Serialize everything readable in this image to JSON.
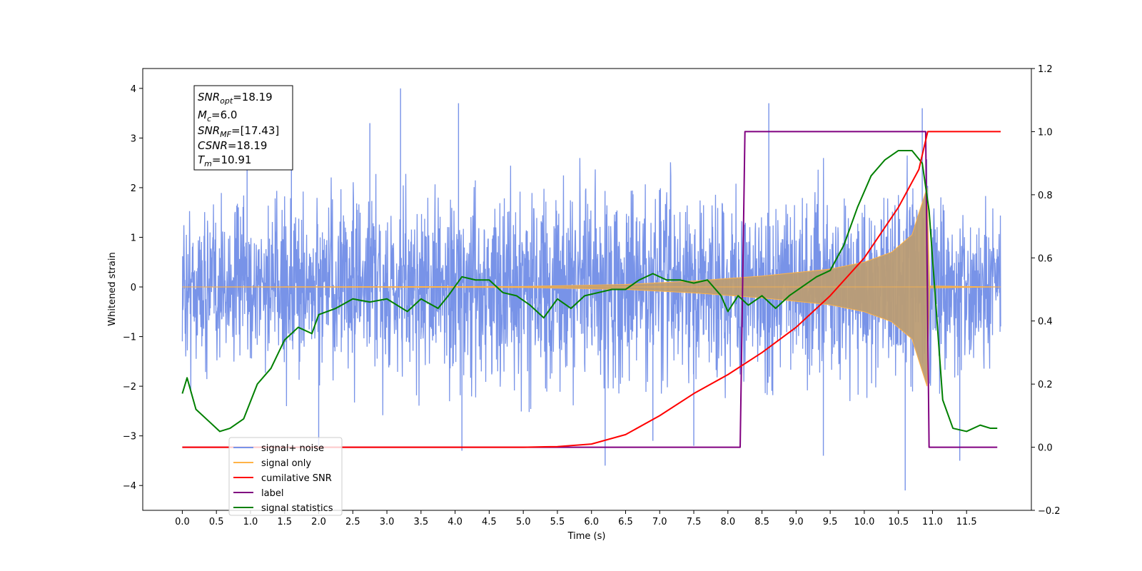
{
  "chart_data": {
    "type": "line",
    "xlabel": "Time (s)",
    "ylabel": "Whitened strain",
    "xlim": [
      -0.58,
      12.45
    ],
    "ylim": [
      -4.5,
      4.4
    ],
    "ylim_right": [
      -0.2,
      1.2
    ],
    "x_ticks": [
      "0.0",
      "0.5",
      "1.0",
      "1.5",
      "2.0",
      "2.5",
      "3.0",
      "3.5",
      "4.0",
      "4.5",
      "5.0",
      "5.5",
      "6.0",
      "6.5",
      "7.0",
      "7.5",
      "8.0",
      "8.5",
      "9.0",
      "9.5",
      "10.0",
      "10.5",
      "11.0",
      "11.5"
    ],
    "y_ticks_left": [
      "4",
      "3",
      "2",
      "1",
      "0",
      "−1",
      "−2",
      "−3",
      "−4"
    ],
    "y_ticks_right": [
      "1.2",
      "1.0",
      "0.8",
      "0.6",
      "0.4",
      "0.2",
      "0.0",
      "−0.2"
    ],
    "colors": {
      "signal_noise": "#7893e8",
      "signal_only": "#ffb347",
      "signal_fill": "#bb9c74",
      "cumulative_snr": "#ff0000",
      "label": "#800080",
      "signal_statistics": "#008000"
    },
    "info_box": {
      "lines": [
        {
          "main": "SNR",
          "sub": "opt",
          "value": "=18.19"
        },
        {
          "main": "M",
          "sub": "c",
          "value": "=6.0"
        },
        {
          "main": "SNR",
          "sub": "MF",
          "value": "=[17.43]"
        },
        {
          "main": "CSNR",
          "sub": "",
          "value": "=18.19"
        },
        {
          "main": "T",
          "sub": "m",
          "value": "=10.91"
        }
      ]
    },
    "legend": {
      "placement": "lower-left",
      "entries": [
        {
          "label": "signal+ noise",
          "color": "#7893e8"
        },
        {
          "label": "signal only",
          "color": "#ffb347"
        },
        {
          "label": "cumilative SNR",
          "color": "#ff0000"
        },
        {
          "label": "label",
          "color": "#800080"
        },
        {
          "label": "signal statistics",
          "color": "#008000"
        }
      ]
    },
    "series": [
      {
        "name": "signal+ noise",
        "axis": "left",
        "x_range": [
          0.0,
          12.0
        ],
        "envelope": [
          {
            "x": 0.0,
            "lo": -2.3,
            "hi": 2.2
          },
          {
            "x": 3.0,
            "lo": -2.6,
            "hi": 2.6
          },
          {
            "x": 6.0,
            "lo": -2.8,
            "hi": 2.8
          },
          {
            "x": 8.2,
            "lo": -2.4,
            "hi": 2.5
          },
          {
            "x": 10.5,
            "lo": -2.9,
            "hi": 2.8
          },
          {
            "x": 12.0,
            "lo": -2.3,
            "hi": 2.2
          }
        ],
        "spikes": [
          {
            "x": 0.95,
            "y": 3.2
          },
          {
            "x": 1.6,
            "y": 3.0
          },
          {
            "x": 2.75,
            "y": 3.3
          },
          {
            "x": 3.2,
            "y": 4.0
          },
          {
            "x": 4.05,
            "y": 3.7
          },
          {
            "x": 6.2,
            "y": -3.6
          },
          {
            "x": 8.6,
            "y": 3.7
          },
          {
            "x": 9.4,
            "y": -3.4
          },
          {
            "x": 10.6,
            "y": -4.1
          },
          {
            "x": 10.85,
            "y": 3.6
          },
          {
            "x": 11.4,
            "y": -3.5
          },
          {
            "x": 4.1,
            "y": -3.3
          },
          {
            "x": 6.9,
            "y": -3.1
          },
          {
            "x": 7.5,
            "y": -3.2
          },
          {
            "x": 2.0,
            "y": -3.2
          }
        ]
      },
      {
        "name": "signal only",
        "axis": "left",
        "envelope": [
          {
            "x": 0.0,
            "a": 0.0
          },
          {
            "x": 5.0,
            "a": 0.01
          },
          {
            "x": 6.5,
            "a": 0.05
          },
          {
            "x": 7.5,
            "a": 0.12
          },
          {
            "x": 8.5,
            "a": 0.22
          },
          {
            "x": 9.5,
            "a": 0.36
          },
          {
            "x": 10.0,
            "a": 0.5
          },
          {
            "x": 10.4,
            "a": 0.7
          },
          {
            "x": 10.7,
            "a": 1.05
          },
          {
            "x": 10.85,
            "a": 1.7
          },
          {
            "x": 10.92,
            "a": 2.0
          },
          {
            "x": 10.96,
            "a": 0.02
          },
          {
            "x": 12.0,
            "a": 0.0
          }
        ]
      },
      {
        "name": "cumilative SNR",
        "axis": "right",
        "points": [
          {
            "x": 0.0,
            "y": 0.0
          },
          {
            "x": 5.0,
            "y": 0.0
          },
          {
            "x": 5.5,
            "y": 0.002
          },
          {
            "x": 6.0,
            "y": 0.01
          },
          {
            "x": 6.5,
            "y": 0.04
          },
          {
            "x": 7.0,
            "y": 0.1
          },
          {
            "x": 7.5,
            "y": 0.17
          },
          {
            "x": 8.0,
            "y": 0.23
          },
          {
            "x": 8.5,
            "y": 0.3
          },
          {
            "x": 9.0,
            "y": 0.38
          },
          {
            "x": 9.5,
            "y": 0.48
          },
          {
            "x": 10.0,
            "y": 0.6
          },
          {
            "x": 10.5,
            "y": 0.76
          },
          {
            "x": 10.8,
            "y": 0.88
          },
          {
            "x": 10.93,
            "y": 1.0
          },
          {
            "x": 12.0,
            "y": 1.0
          }
        ]
      },
      {
        "name": "label",
        "axis": "right",
        "points": [
          {
            "x": 0.0,
            "y": 0.0
          },
          {
            "x": 8.18,
            "y": 0.0
          },
          {
            "x": 8.25,
            "y": 1.0
          },
          {
            "x": 10.9,
            "y": 1.0
          },
          {
            "x": 10.95,
            "y": 0.0
          },
          {
            "x": 11.95,
            "y": 0.0
          }
        ]
      },
      {
        "name": "signal statistics",
        "axis": "right",
        "points": [
          {
            "x": 0.0,
            "y": 0.17
          },
          {
            "x": 0.07,
            "y": 0.22
          },
          {
            "x": 0.2,
            "y": 0.12
          },
          {
            "x": 0.4,
            "y": 0.08
          },
          {
            "x": 0.55,
            "y": 0.05
          },
          {
            "x": 0.7,
            "y": 0.06
          },
          {
            "x": 0.9,
            "y": 0.09
          },
          {
            "x": 1.1,
            "y": 0.2
          },
          {
            "x": 1.3,
            "y": 0.25
          },
          {
            "x": 1.5,
            "y": 0.34
          },
          {
            "x": 1.7,
            "y": 0.38
          },
          {
            "x": 1.9,
            "y": 0.36
          },
          {
            "x": 2.0,
            "y": 0.42
          },
          {
            "x": 2.25,
            "y": 0.44
          },
          {
            "x": 2.5,
            "y": 0.47
          },
          {
            "x": 2.75,
            "y": 0.46
          },
          {
            "x": 3.0,
            "y": 0.47
          },
          {
            "x": 3.3,
            "y": 0.43
          },
          {
            "x": 3.5,
            "y": 0.47
          },
          {
            "x": 3.75,
            "y": 0.44
          },
          {
            "x": 3.9,
            "y": 0.48
          },
          {
            "x": 4.1,
            "y": 0.54
          },
          {
            "x": 4.3,
            "y": 0.53
          },
          {
            "x": 4.5,
            "y": 0.53
          },
          {
            "x": 4.7,
            "y": 0.49
          },
          {
            "x": 4.9,
            "y": 0.48
          },
          {
            "x": 5.1,
            "y": 0.45
          },
          {
            "x": 5.3,
            "y": 0.41
          },
          {
            "x": 5.5,
            "y": 0.47
          },
          {
            "x": 5.7,
            "y": 0.44
          },
          {
            "x": 5.9,
            "y": 0.48
          },
          {
            "x": 6.1,
            "y": 0.49
          },
          {
            "x": 6.3,
            "y": 0.5
          },
          {
            "x": 6.5,
            "y": 0.5
          },
          {
            "x": 6.7,
            "y": 0.53
          },
          {
            "x": 6.9,
            "y": 0.55
          },
          {
            "x": 7.1,
            "y": 0.53
          },
          {
            "x": 7.3,
            "y": 0.53
          },
          {
            "x": 7.5,
            "y": 0.52
          },
          {
            "x": 7.7,
            "y": 0.53
          },
          {
            "x": 7.9,
            "y": 0.48
          },
          {
            "x": 8.0,
            "y": 0.43
          },
          {
            "x": 8.15,
            "y": 0.48
          },
          {
            "x": 8.3,
            "y": 0.45
          },
          {
            "x": 8.5,
            "y": 0.48
          },
          {
            "x": 8.7,
            "y": 0.44
          },
          {
            "x": 8.9,
            "y": 0.48
          },
          {
            "x": 9.1,
            "y": 0.51
          },
          {
            "x": 9.3,
            "y": 0.54
          },
          {
            "x": 9.5,
            "y": 0.56
          },
          {
            "x": 9.7,
            "y": 0.64
          },
          {
            "x": 9.9,
            "y": 0.76
          },
          {
            "x": 10.1,
            "y": 0.86
          },
          {
            "x": 10.3,
            "y": 0.91
          },
          {
            "x": 10.5,
            "y": 0.94
          },
          {
            "x": 10.7,
            "y": 0.94
          },
          {
            "x": 10.85,
            "y": 0.9
          },
          {
            "x": 10.95,
            "y": 0.75
          },
          {
            "x": 11.05,
            "y": 0.45
          },
          {
            "x": 11.15,
            "y": 0.15
          },
          {
            "x": 11.3,
            "y": 0.06
          },
          {
            "x": 11.5,
            "y": 0.05
          },
          {
            "x": 11.7,
            "y": 0.07
          },
          {
            "x": 11.85,
            "y": 0.06
          },
          {
            "x": 11.95,
            "y": 0.06
          }
        ]
      }
    ]
  }
}
